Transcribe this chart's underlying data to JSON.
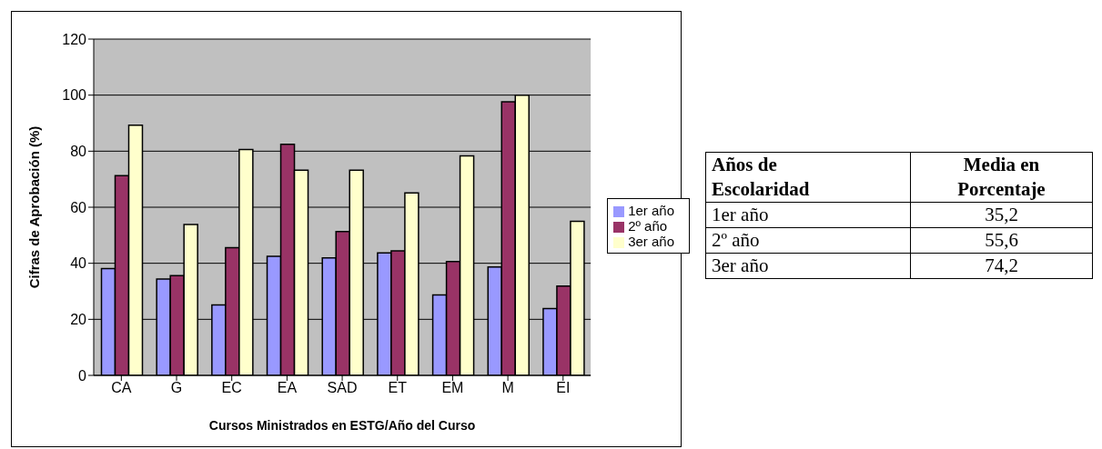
{
  "chart_data": [
    {
      "type": "bar",
      "categories": [
        "CA",
        "G",
        "EC",
        "EA",
        "SAD",
        "ET",
        "EM",
        "M",
        "EI"
      ],
      "series": [
        {
          "name": "1er año",
          "color": "#9999ff",
          "values": [
            38.1,
            34.4,
            25.1,
            42.5,
            41.9,
            43.7,
            28.7,
            38.7,
            23.8
          ]
        },
        {
          "name": "2º año",
          "color": "#993366",
          "values": [
            71.3,
            35.6,
            45.6,
            82.5,
            51.3,
            44.4,
            40.6,
            97.6,
            31.9
          ]
        },
        {
          "name": "3er año",
          "color": "#ffffcc",
          "values": [
            89.3,
            53.8,
            80.6,
            73.2,
            73.2,
            65.1,
            78.3,
            100,
            55.0
          ]
        }
      ],
      "xlabel": "Cursos Ministrados en ESTG/Año del Curso",
      "ylabel": "Cifras de Aprobación  (%)",
      "ylim": [
        0,
        120
      ],
      "yticks": [
        0,
        20,
        40,
        60,
        80,
        100,
        120
      ],
      "grid": "y",
      "legend": "right"
    },
    {
      "type": "other",
      "xlabel": "Años de Escolaridad",
      "ylabel": "Media en Porcentaje",
      "categories": [
        "1er año",
        "2º año",
        "3er año"
      ],
      "value_labels": [
        "35,2",
        "55,6",
        "74,2"
      ]
    }
  ]
}
